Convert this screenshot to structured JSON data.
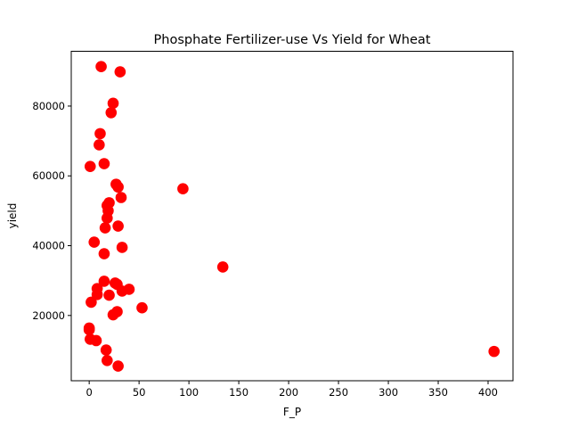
{
  "chart_data": {
    "type": "scatter",
    "title": "Phosphate Fertilizer-use Vs Yield for Wheat",
    "xlabel": "F_P",
    "ylabel": "yield",
    "xlim": [
      -18,
      425
    ],
    "ylim": [
      1300,
      95700
    ],
    "xticks": [
      0,
      50,
      100,
      150,
      200,
      250,
      300,
      350,
      400
    ],
    "yticks": [
      20000,
      40000,
      60000,
      80000
    ],
    "grid": false,
    "marker_color": "#ff0000",
    "points": [
      {
        "x": 12,
        "y": 91300
      },
      {
        "x": 31,
        "y": 89800
      },
      {
        "x": 24,
        "y": 80800
      },
      {
        "x": 22,
        "y": 78100
      },
      {
        "x": 11,
        "y": 72100
      },
      {
        "x": 10,
        "y": 68900
      },
      {
        "x": 15,
        "y": 63500
      },
      {
        "x": 1,
        "y": 62700
      },
      {
        "x": 27,
        "y": 57600
      },
      {
        "x": 29,
        "y": 56800
      },
      {
        "x": 94,
        "y": 56300
      },
      {
        "x": 32,
        "y": 53800
      },
      {
        "x": 20,
        "y": 52300
      },
      {
        "x": 18,
        "y": 51500
      },
      {
        "x": 19,
        "y": 50000
      },
      {
        "x": 18,
        "y": 47900
      },
      {
        "x": 29,
        "y": 45600
      },
      {
        "x": 16,
        "y": 45100
      },
      {
        "x": 5,
        "y": 41000
      },
      {
        "x": 33,
        "y": 39500
      },
      {
        "x": 15,
        "y": 37700
      },
      {
        "x": 134,
        "y": 33900
      },
      {
        "x": 15,
        "y": 29800
      },
      {
        "x": 26,
        "y": 29300
      },
      {
        "x": 28,
        "y": 28900
      },
      {
        "x": 8,
        "y": 27700
      },
      {
        "x": 40,
        "y": 27500
      },
      {
        "x": 33,
        "y": 27000
      },
      {
        "x": 8,
        "y": 26000
      },
      {
        "x": 20,
        "y": 25800
      },
      {
        "x": 2,
        "y": 23800
      },
      {
        "x": 53,
        "y": 22200
      },
      {
        "x": 28,
        "y": 21100
      },
      {
        "x": 24,
        "y": 20200
      },
      {
        "x": 0,
        "y": 16400
      },
      {
        "x": 0,
        "y": 15900
      },
      {
        "x": 1,
        "y": 13200
      },
      {
        "x": 7,
        "y": 12800
      },
      {
        "x": 17,
        "y": 10100
      },
      {
        "x": 406,
        "y": 9700
      },
      {
        "x": 18,
        "y": 7100
      },
      {
        "x": 29,
        "y": 5500
      }
    ]
  }
}
